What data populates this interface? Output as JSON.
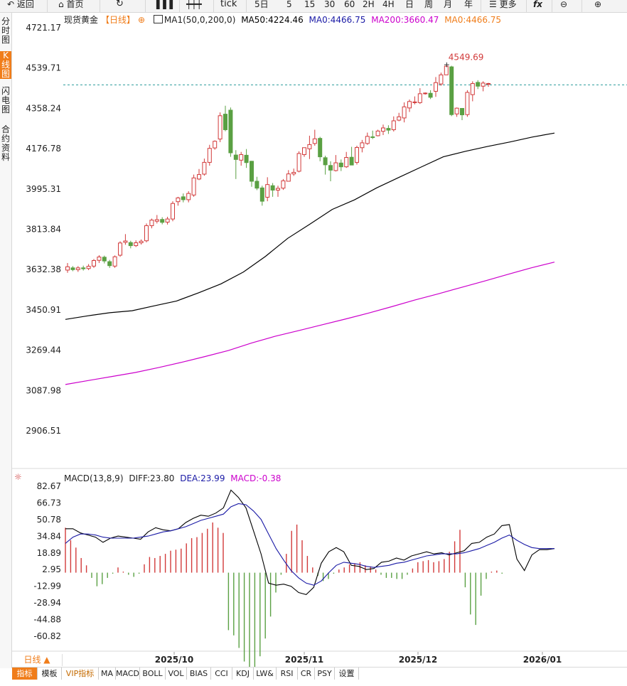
{
  "toolbar": {
    "back": "返回",
    "home": "首页",
    "tick": "tick",
    "periods": [
      "5日",
      "5",
      "15",
      "30",
      "60",
      "2H",
      "4H",
      "日",
      "周",
      "月",
      "年"
    ],
    "more": "更多",
    "fx": "fx"
  },
  "sidebar": [
    {
      "label": "分时图",
      "active": false
    },
    {
      "label": "K线图",
      "active": true
    },
    {
      "label": "闪电图",
      "active": false
    },
    {
      "label": "合约资料",
      "active": false
    }
  ],
  "header": {
    "symbol": "现货黄金",
    "period": "【日线】",
    "ma_label": "MA1(50,0,200,0)",
    "ma50": "MA50:4224.46",
    "ma0a": "MA0:4466.75",
    "ma200": "MA200:3660.47",
    "ma0b": "MA0:4466.75"
  },
  "macd_header": {
    "label": "MACD(13,8,9)",
    "diff": "DIFF:23.80",
    "dea": "DEA:23.99",
    "macd": "MACD:-0.38"
  },
  "period_box": "日线 ▲",
  "bottom_tabs": [
    "指标",
    "模板",
    "VIP指标",
    "MA",
    "MACD",
    "BOLL",
    "VOL",
    "BIAS",
    "CCI",
    "KDJ",
    "LW&",
    "RSI",
    "CR",
    "PSY",
    "设置"
  ],
  "colors": {
    "up": "#d23a3a",
    "down": "#5aa043",
    "ma50": "#000000",
    "ma200": "#cc00cc",
    "dea": "#1a1aa6",
    "macd": "#cc00cc",
    "accent": "#f07d1a",
    "last_price_line": "#2a9d9d"
  },
  "chart_data": [
    {
      "type": "candlestick",
      "title": "现货黄金",
      "y_ticks": [
        "4721.17",
        "4539.71",
        "4358.24",
        "4176.78",
        "3995.31",
        "3813.84",
        "3632.38",
        "3450.91",
        "3269.44",
        "3087.98",
        "2906.51"
      ],
      "ylim": [
        2870,
        4745
      ],
      "x_ticks": [
        "2025/10",
        "2025/11",
        "2025/12",
        "2026/01"
      ],
      "max_label": "4549.69",
      "last_price": 4464,
      "candles": [
        [
          3630,
          3645,
          3662,
          3618
        ],
        [
          3640,
          3632,
          3648,
          3625
        ],
        [
          3632,
          3640,
          3648,
          3622
        ],
        [
          3640,
          3636,
          3650,
          3628
        ],
        [
          3637,
          3647,
          3657,
          3630
        ],
        [
          3648,
          3673,
          3680,
          3640
        ],
        [
          3674,
          3689,
          3697,
          3662
        ],
        [
          3688,
          3671,
          3695,
          3660
        ],
        [
          3668,
          3650,
          3676,
          3640
        ],
        [
          3648,
          3690,
          3696,
          3640
        ],
        [
          3697,
          3752,
          3760,
          3690
        ],
        [
          3755,
          3761,
          3792,
          3744
        ],
        [
          3754,
          3740,
          3762,
          3728
        ],
        [
          3740,
          3753,
          3764,
          3734
        ],
        [
          3753,
          3760,
          3768,
          3745
        ],
        [
          3762,
          3830,
          3840,
          3755
        ],
        [
          3830,
          3855,
          3862,
          3818
        ],
        [
          3850,
          3857,
          3878,
          3840
        ],
        [
          3858,
          3845,
          3868,
          3836
        ],
        [
          3846,
          3860,
          3870,
          3835
        ],
        [
          3860,
          3930,
          3940,
          3850
        ],
        [
          3938,
          3955,
          3960,
          3920
        ],
        [
          3960,
          3947,
          3975,
          3935
        ],
        [
          3947,
          3975,
          3985,
          3935
        ],
        [
          3968,
          4045,
          4060,
          3960
        ],
        [
          4040,
          4060,
          4085,
          4035
        ],
        [
          4062,
          4115,
          4132,
          4055
        ],
        [
          4115,
          4178,
          4194,
          4100
        ],
        [
          4180,
          4210,
          4214,
          4172
        ],
        [
          4220,
          4325,
          4340,
          4206
        ],
        [
          4332,
          4262,
          4370,
          4255
        ],
        [
          4350,
          4158,
          4362,
          4140
        ],
        [
          4148,
          4128,
          4170,
          4040
        ],
        [
          4125,
          4150,
          4162,
          4100
        ],
        [
          4147,
          4114,
          4175,
          4090
        ],
        [
          4120,
          4030,
          4122,
          4005
        ],
        [
          4030,
          3999,
          4050,
          3990
        ],
        [
          4000,
          3940,
          4010,
          3920
        ],
        [
          3958,
          4015,
          4048,
          3940
        ],
        [
          4010,
          3990,
          4022,
          3960
        ],
        [
          3990,
          3998,
          4010,
          3960
        ],
        [
          3999,
          4032,
          4040,
          3991
        ],
        [
          4030,
          4063,
          4080,
          4030
        ],
        [
          4063,
          4070,
          4087,
          4054
        ],
        [
          4075,
          4155,
          4165,
          4070
        ],
        [
          4150,
          4181,
          4180,
          4140
        ],
        [
          4176,
          4195,
          4235,
          4130
        ],
        [
          4200,
          4221,
          4262,
          4190
        ],
        [
          4223,
          4140,
          4230,
          4120
        ],
        [
          4136,
          4104,
          4145,
          4060
        ],
        [
          4101,
          4080,
          4120,
          4030
        ],
        [
          4078,
          4113,
          4148,
          4074
        ],
        [
          4112,
          4095,
          4128,
          4076
        ],
        [
          4095,
          4137,
          4162,
          4090
        ],
        [
          4138,
          4103,
          4185,
          4102
        ],
        [
          4115,
          4182,
          4190,
          4105
        ],
        [
          4181,
          4203,
          4216,
          4160
        ],
        [
          4200,
          4232,
          4249,
          4194
        ],
        [
          4230,
          4227,
          4258,
          4220
        ],
        [
          4235,
          4256,
          4262,
          4232
        ],
        [
          4255,
          4270,
          4285,
          4238
        ],
        [
          4268,
          4260,
          4282,
          4243
        ],
        [
          4262,
          4302,
          4322,
          4254
        ],
        [
          4305,
          4320,
          4338,
          4300
        ],
        [
          4315,
          4365,
          4385,
          4295
        ],
        [
          4360,
          4389,
          4398,
          4342
        ],
        [
          4386,
          4387,
          4412,
          4376
        ],
        [
          4384,
          4424,
          4449,
          4378
        ],
        [
          4424,
          4427,
          4430,
          4420
        ],
        [
          4426,
          4408,
          4440,
          4400
        ],
        [
          4435,
          4474,
          4499,
          4410
        ],
        [
          4468,
          4509,
          4519,
          4460
        ],
        [
          4509,
          4548,
          4550,
          4510
        ],
        [
          4545,
          4330,
          4550,
          4323
        ],
        [
          4333,
          4359,
          4362,
          4320
        ],
        [
          4358,
          4329,
          4345,
          4305
        ],
        [
          4330,
          4430,
          4440,
          4320
        ],
        [
          4420,
          4470,
          4480,
          4390
        ],
        [
          4475,
          4458,
          4485,
          4445
        ],
        [
          4458,
          4472,
          4480,
          4435
        ],
        [
          4468,
          4470,
          4473,
          4455
        ]
      ],
      "ma50": [
        3408,
        3424,
        3438,
        3447,
        3469,
        3491,
        3528,
        3568,
        3621,
        3692,
        3773,
        3837,
        3903,
        3946,
        4000,
        4047,
        4094,
        4140,
        4165,
        4187,
        4207,
        4229,
        4247
      ],
      "ma200": [
        3115,
        3133,
        3151,
        3169,
        3191,
        3215,
        3241,
        3268,
        3302,
        3332,
        3357,
        3383,
        3409,
        3436,
        3465,
        3495,
        3523,
        3552,
        3581,
        3611,
        3640,
        3666
      ]
    },
    {
      "type": "macd",
      "title": "MACD(13,8,9)",
      "y_ticks": [
        "82.67",
        "66.73",
        "50.78",
        "34.84",
        "18.89",
        "2.95",
        "-12.99",
        "-28.94",
        "-44.88",
        "-60.82"
      ],
      "ylim": [
        -82,
        88
      ],
      "hist": [
        43,
        31,
        24,
        14,
        7,
        -5,
        -13,
        -11,
        -5,
        -1,
        5,
        1,
        -2,
        -4,
        -1,
        8,
        15,
        14,
        16,
        18,
        21,
        22,
        23,
        28,
        33,
        34,
        38,
        42,
        48,
        43,
        38,
        -55,
        -60,
        -72,
        -85,
        -96,
        -95,
        -80,
        -63,
        -42,
        -19,
        -2,
        18,
        40,
        46,
        31,
        16,
        5,
        -3,
        -8,
        -6,
        -1,
        3,
        5,
        8,
        9,
        10,
        7,
        6,
        3,
        -2,
        -5,
        -5,
        -6,
        -6,
        -2,
        4,
        10,
        11,
        12,
        10,
        11,
        13,
        20,
        30,
        41,
        -14,
        -40,
        -50,
        -22,
        -6,
        1,
        2,
        -1
      ],
      "diff": [
        42,
        42,
        38,
        36,
        34,
        29,
        33,
        35,
        34,
        33,
        32,
        39,
        43,
        41,
        40,
        42,
        48,
        52,
        55,
        54,
        57,
        62,
        79,
        72,
        62,
        40,
        18,
        -10,
        -12,
        -11,
        -13,
        -19,
        -21,
        -14,
        9,
        20,
        24,
        20,
        7,
        6,
        3,
        4,
        10,
        11,
        14,
        12,
        16,
        18,
        20,
        18,
        19,
        17,
        19,
        21,
        28,
        29,
        34,
        37,
        45,
        46,
        13,
        2,
        17,
        22,
        22,
        23
      ],
      "dea": [
        28,
        34,
        37,
        37,
        36,
        34,
        33,
        33,
        33,
        33,
        34,
        35,
        37,
        39,
        40,
        42,
        44,
        47,
        50,
        52,
        54,
        56,
        63,
        66,
        65,
        59,
        51,
        37,
        23,
        12,
        2,
        -5,
        -10,
        -12,
        -8,
        0,
        7,
        10,
        9,
        8,
        6,
        5,
        6,
        7,
        9,
        10,
        12,
        14,
        16,
        17,
        18,
        18,
        18,
        19,
        21,
        23,
        26,
        29,
        33,
        36,
        31,
        27,
        24,
        23,
        23,
        23
      ]
    }
  ]
}
